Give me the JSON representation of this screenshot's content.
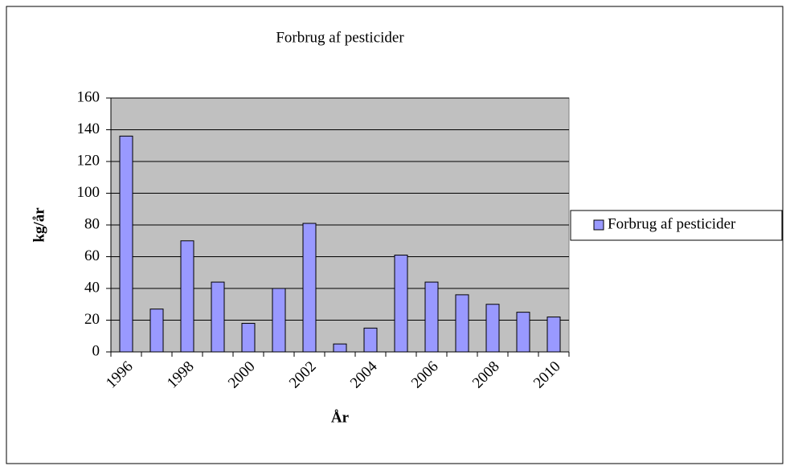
{
  "chart_data": {
    "type": "bar",
    "title": "Forbrug af pesticider",
    "x_label": "År",
    "y_label": "kg/år",
    "categories": [
      "1996",
      null,
      "1998",
      null,
      "2000",
      null,
      "2002",
      null,
      "2004",
      null,
      "2006",
      null,
      "2008",
      null,
      "2010"
    ],
    "series": [
      {
        "name": "Forbrug af pesticider",
        "color": "#9999ff",
        "values": [
          136,
          27,
          70,
          44,
          18,
          40,
          81,
          5,
          15,
          61,
          44,
          36,
          30,
          25,
          22
        ]
      }
    ],
    "ylim": [
      0,
      160
    ],
    "yticks": [
      0,
      20,
      40,
      60,
      80,
      100,
      120,
      140,
      160
    ],
    "grid": true,
    "legend": "right"
  }
}
